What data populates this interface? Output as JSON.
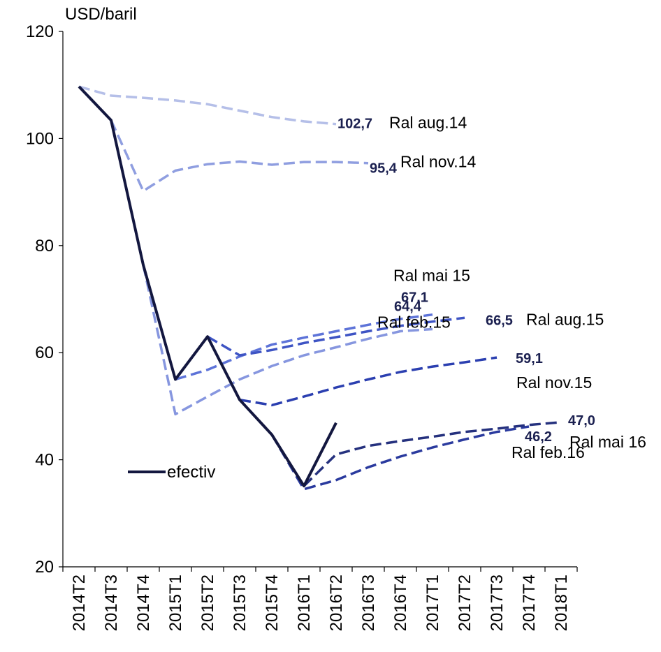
{
  "chart_data": {
    "type": "line",
    "ylabel": "USD/baril",
    "ylim": [
      20,
      120
    ],
    "yticks": [
      20,
      40,
      60,
      80,
      100,
      120
    ],
    "grid": false,
    "legend_position": "left-middle",
    "categories": [
      "2014T2",
      "2014T3",
      "2014T4",
      "2015T1",
      "2015T2",
      "2015T3",
      "2015T4",
      "2016T1",
      "2016T2",
      "2016T3",
      "2016T4",
      "2017T1",
      "2017T2",
      "2017T3",
      "2017T4",
      "2018T1"
    ],
    "series": [
      {
        "name": "efectiv",
        "color": "#13173f",
        "dashed": false,
        "values": [
          109.7,
          103.4,
          76.4,
          55.0,
          63.0,
          51.2,
          44.7,
          35.1,
          46.9,
          null,
          null,
          null,
          null,
          null,
          null,
          null
        ]
      },
      {
        "name": "Ral aug.14",
        "color": "#b5bfe8",
        "dashed": true,
        "end_value_label": "102,7",
        "values": [
          109.7,
          108.0,
          107.6,
          107.1,
          106.4,
          105.2,
          104.0,
          103.2,
          102.7,
          null,
          null,
          null,
          null,
          null,
          null,
          null
        ]
      },
      {
        "name": "Ral nov.14",
        "color": "#8f9ee0",
        "dashed": true,
        "end_value_label": "95,4",
        "values": [
          null,
          103.4,
          90.2,
          94.0,
          95.2,
          95.7,
          95.1,
          95.6,
          95.6,
          95.4,
          null,
          null,
          null,
          null,
          null,
          null
        ]
      },
      {
        "name": "Ral feb.15",
        "color": "#8696df",
        "dashed": true,
        "end_value_label": "64,4",
        "values": [
          null,
          null,
          76.4,
          48.5,
          51.8,
          55.0,
          57.5,
          59.5,
          61.0,
          62.6,
          64.0,
          64.4,
          null,
          null,
          null,
          null
        ]
      },
      {
        "name": "Ral mai 15",
        "color": "#5d73d8",
        "dashed": true,
        "end_value_label": "67,1",
        "values": [
          null,
          null,
          null,
          55.0,
          56.8,
          59.3,
          61.5,
          62.8,
          64.0,
          65.2,
          66.3,
          67.1,
          null,
          null,
          null,
          null
        ]
      },
      {
        "name": "Ral aug.15",
        "color": "#3e54c4",
        "dashed": true,
        "end_value_label": "66,5",
        "values": [
          null,
          null,
          null,
          null,
          63.0,
          59.5,
          60.5,
          61.8,
          62.9,
          64.0,
          65.0,
          65.8,
          66.5,
          null,
          null,
          null
        ]
      },
      {
        "name": "Ral nov.15",
        "color": "#2b3fb0",
        "dashed": true,
        "end_value_label": "59,1",
        "values": [
          null,
          null,
          null,
          null,
          null,
          51.2,
          50.2,
          51.8,
          53.5,
          55.0,
          56.4,
          57.4,
          58.2,
          59.1,
          null,
          null
        ]
      },
      {
        "name": "Ral feb.16",
        "color": "#2a3a9e",
        "dashed": true,
        "end_value_label": "46,2",
        "values": [
          null,
          null,
          null,
          null,
          null,
          null,
          44.7,
          34.5,
          36.2,
          38.6,
          40.6,
          42.3,
          43.8,
          45.2,
          46.2,
          null
        ]
      },
      {
        "name": "Ral mai 16",
        "color": "#25317e",
        "dashed": true,
        "end_value_label": "47,0",
        "values": [
          null,
          null,
          null,
          null,
          null,
          null,
          null,
          35.1,
          41.0,
          42.6,
          43.5,
          44.3,
          45.2,
          45.8,
          46.5,
          47.0
        ]
      }
    ]
  }
}
